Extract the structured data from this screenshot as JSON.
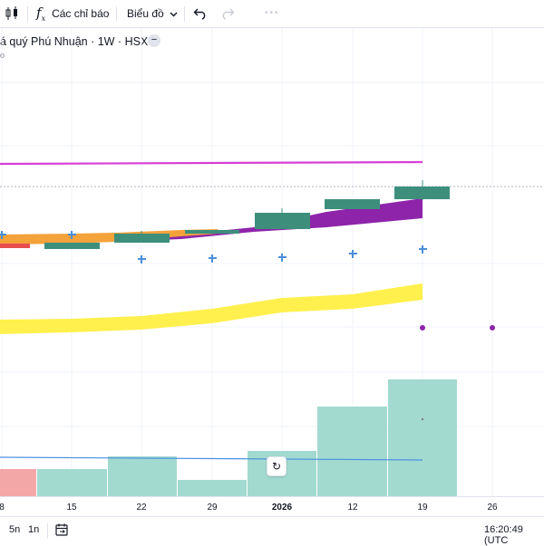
{
  "toolbar": {
    "indicators_label": "Các chỉ báo",
    "chart_type_label": "Biểu đồ",
    "dots": "•••"
  },
  "legend": {
    "title": "á quý Phú Nhuận · 1W · HSX",
    "collapse_symbol": "−",
    "sub_mark": "o"
  },
  "x_axis": {
    "ticks": [
      "8",
      "15",
      "22",
      "29",
      "2026",
      "12",
      "19",
      "26"
    ]
  },
  "bottom": {
    "range_5n": "5n",
    "range_1n": "1n",
    "time": "16:20:49 (UTC"
  },
  "colors": {
    "up_candle": "#3d8f7c",
    "down_candle": "#e84e4e",
    "magenta_line": "#d63fd6",
    "purple_band": "#8e24aa",
    "yellow_band": "#fff04d",
    "orange_band": "#f4a23a",
    "plus_marker": "#4a8fd9",
    "volume_bar": "#a3dacf",
    "volume_bar_down": "#f4a7a7",
    "volume_ma": "#4a90e2"
  },
  "icons": [
    "candles-icon",
    "fx-icon",
    "chevron-down-icon",
    "undo-icon",
    "redo-icon",
    "calendar-icon",
    "reset-icon"
  ]
}
